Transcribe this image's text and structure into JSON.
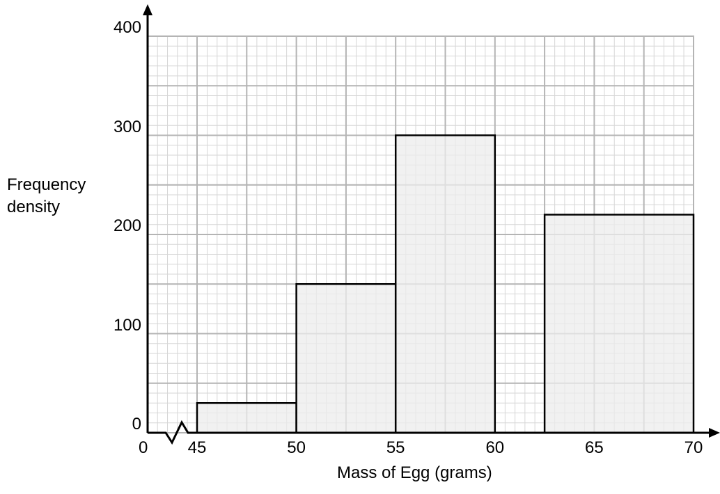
{
  "chart_data": {
    "type": "bar",
    "title": "",
    "xlabel": "Mass of Egg (grams)",
    "ylabel": "Frequency density",
    "ylabel_lines": [
      "Frequency",
      "density"
    ],
    "x_origin_label": "0",
    "axis_break": "zigzag between 0 and 45",
    "xlim": [
      45,
      70
    ],
    "ylim": [
      0,
      400
    ],
    "x_ticks": [
      45,
      50,
      55,
      60,
      65,
      70
    ],
    "y_ticks": [
      0,
      100,
      200,
      300,
      400
    ],
    "grid": "on (major and minor)",
    "bars": [
      {
        "x_start": 45,
        "x_end": 50,
        "value": 30
      },
      {
        "x_start": 50,
        "x_end": 55,
        "value": 150
      },
      {
        "x_start": 55,
        "x_end": 60,
        "value": 300
      },
      {
        "x_start": 62.5,
        "x_end": 70,
        "value": 220
      }
    ],
    "bar_fill": "#ececec",
    "bar_stroke": "#000000"
  }
}
